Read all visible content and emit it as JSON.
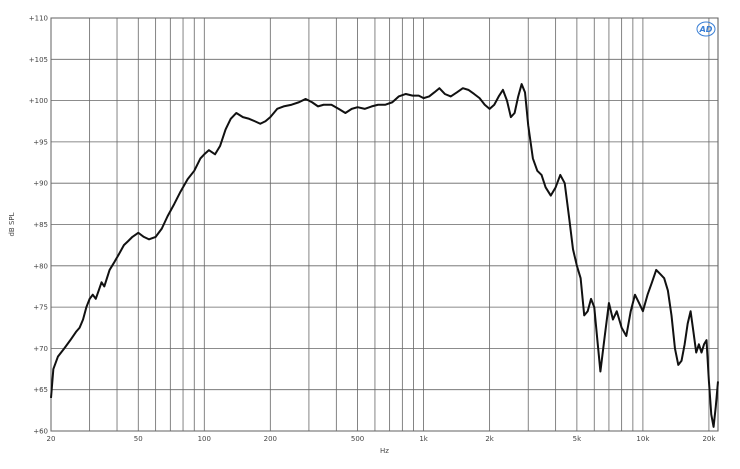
{
  "chart_data": {
    "type": "line",
    "xlabel": "Hz",
    "ylabel": "dB SPL",
    "x_scale": "log",
    "xlim": [
      20,
      22000
    ],
    "ylim": [
      60,
      110
    ],
    "grid": true,
    "logo": "AD",
    "y_ticks": [
      {
        "value": 110,
        "label": "+110"
      },
      {
        "value": 105,
        "label": "+105"
      },
      {
        "value": 100,
        "label": "+100"
      },
      {
        "value": 95,
        "label": "+95"
      },
      {
        "value": 90,
        "label": "+90"
      },
      {
        "value": 85,
        "label": "+85"
      },
      {
        "value": 80,
        "label": "+80"
      },
      {
        "value": 75,
        "label": "+75"
      },
      {
        "value": 70,
        "label": "+70"
      },
      {
        "value": 65,
        "label": "+65"
      },
      {
        "value": 60,
        "label": "+60"
      }
    ],
    "x_ticks": [
      {
        "value": 20,
        "label": "20"
      },
      {
        "value": 50,
        "label": "50"
      },
      {
        "value": 100,
        "label": "100"
      },
      {
        "value": 200,
        "label": "200"
      },
      {
        "value": 500,
        "label": "500"
      },
      {
        "value": 1000,
        "label": "1k"
      },
      {
        "value": 2000,
        "label": "2k"
      },
      {
        "value": 5000,
        "label": "5k"
      },
      {
        "value": 10000,
        "label": "10k"
      },
      {
        "value": 20000,
        "label": "20k"
      }
    ],
    "x_grid": [
      20,
      30,
      40,
      50,
      60,
      70,
      80,
      90,
      100,
      200,
      300,
      400,
      500,
      600,
      700,
      800,
      900,
      1000,
      2000,
      3000,
      4000,
      5000,
      6000,
      7000,
      8000,
      9000,
      10000,
      20000
    ],
    "series": [
      {
        "points": [
          [
            20,
            64
          ],
          [
            20.5,
            67.5
          ],
          [
            21.5,
            69
          ],
          [
            23,
            70
          ],
          [
            24.5,
            71
          ],
          [
            26,
            72
          ],
          [
            27,
            72.5
          ],
          [
            28,
            73.5
          ],
          [
            29,
            75
          ],
          [
            30,
            76
          ],
          [
            31,
            76.5
          ],
          [
            32,
            76
          ],
          [
            33,
            77
          ],
          [
            34,
            78
          ],
          [
            35,
            77.5
          ],
          [
            37,
            79.5
          ],
          [
            39,
            80.5
          ],
          [
            41,
            81.5
          ],
          [
            43,
            82.5
          ],
          [
            45,
            83
          ],
          [
            47,
            83.5
          ],
          [
            50,
            84
          ],
          [
            53,
            83.5
          ],
          [
            56,
            83.2
          ],
          [
            60,
            83.5
          ],
          [
            64,
            84.5
          ],
          [
            68,
            86
          ],
          [
            73,
            87.5
          ],
          [
            78,
            89
          ],
          [
            84,
            90.5
          ],
          [
            90,
            91.5
          ],
          [
            96,
            93
          ],
          [
            100,
            93.5
          ],
          [
            105,
            94
          ],
          [
            112,
            93.5
          ],
          [
            118,
            94.5
          ],
          [
            125,
            96.5
          ],
          [
            132,
            97.8
          ],
          [
            140,
            98.5
          ],
          [
            150,
            98
          ],
          [
            160,
            97.8
          ],
          [
            170,
            97.5
          ],
          [
            180,
            97.2
          ],
          [
            190,
            97.5
          ],
          [
            200,
            98
          ],
          [
            215,
            99
          ],
          [
            230,
            99.3
          ],
          [
            250,
            99.5
          ],
          [
            270,
            99.8
          ],
          [
            290,
            100.2
          ],
          [
            310,
            99.8
          ],
          [
            330,
            99.3
          ],
          [
            350,
            99.5
          ],
          [
            380,
            99.5
          ],
          [
            410,
            99
          ],
          [
            440,
            98.5
          ],
          [
            470,
            99
          ],
          [
            500,
            99.2
          ],
          [
            540,
            99
          ],
          [
            580,
            99.3
          ],
          [
            620,
            99.5
          ],
          [
            670,
            99.5
          ],
          [
            720,
            99.8
          ],
          [
            770,
            100.5
          ],
          [
            830,
            100.8
          ],
          [
            890,
            100.6
          ],
          [
            950,
            100.6
          ],
          [
            1000,
            100.3
          ],
          [
            1060,
            100.5
          ],
          [
            1120,
            101
          ],
          [
            1180,
            101.5
          ],
          [
            1250,
            100.8
          ],
          [
            1330,
            100.5
          ],
          [
            1420,
            101
          ],
          [
            1510,
            101.5
          ],
          [
            1600,
            101.3
          ],
          [
            1700,
            100.8
          ],
          [
            1800,
            100.3
          ],
          [
            1900,
            99.5
          ],
          [
            2000,
            99
          ],
          [
            2100,
            99.5
          ],
          [
            2200,
            100.5
          ],
          [
            2300,
            101.3
          ],
          [
            2400,
            100
          ],
          [
            2500,
            98
          ],
          [
            2600,
            98.5
          ],
          [
            2700,
            100.5
          ],
          [
            2800,
            102
          ],
          [
            2900,
            101
          ],
          [
            3000,
            97
          ],
          [
            3150,
            93
          ],
          [
            3300,
            91.5
          ],
          [
            3450,
            91
          ],
          [
            3600,
            89.5
          ],
          [
            3800,
            88.5
          ],
          [
            4000,
            89.5
          ],
          [
            4200,
            91
          ],
          [
            4400,
            90
          ],
          [
            4600,
            86
          ],
          [
            4800,
            82
          ],
          [
            5000,
            80
          ],
          [
            5200,
            78.5
          ],
          [
            5400,
            74
          ],
          [
            5600,
            74.5
          ],
          [
            5800,
            76
          ],
          [
            6000,
            75
          ],
          [
            6200,
            71
          ],
          [
            6400,
            67.2
          ],
          [
            6700,
            71.5
          ],
          [
            7000,
            75.5
          ],
          [
            7300,
            73.5
          ],
          [
            7600,
            74.5
          ],
          [
            8000,
            72.5
          ],
          [
            8400,
            71.5
          ],
          [
            8800,
            74.5
          ],
          [
            9200,
            76.5
          ],
          [
            9600,
            75.5
          ],
          [
            10000,
            74.5
          ],
          [
            10500,
            76.5
          ],
          [
            11000,
            78
          ],
          [
            11500,
            79.5
          ],
          [
            12000,
            79
          ],
          [
            12500,
            78.5
          ],
          [
            13000,
            77
          ],
          [
            13500,
            74
          ],
          [
            14000,
            70
          ],
          [
            14500,
            68
          ],
          [
            15000,
            68.5
          ],
          [
            15500,
            70.5
          ],
          [
            16000,
            73
          ],
          [
            16500,
            74.5
          ],
          [
            17000,
            72
          ],
          [
            17500,
            69.5
          ],
          [
            18000,
            70.5
          ],
          [
            18500,
            69.5
          ],
          [
            19000,
            70.5
          ],
          [
            19500,
            71
          ],
          [
            20000,
            66
          ],
          [
            20500,
            62
          ],
          [
            21000,
            60.5
          ],
          [
            21500,
            63
          ],
          [
            22000,
            66
          ]
        ]
      }
    ]
  }
}
